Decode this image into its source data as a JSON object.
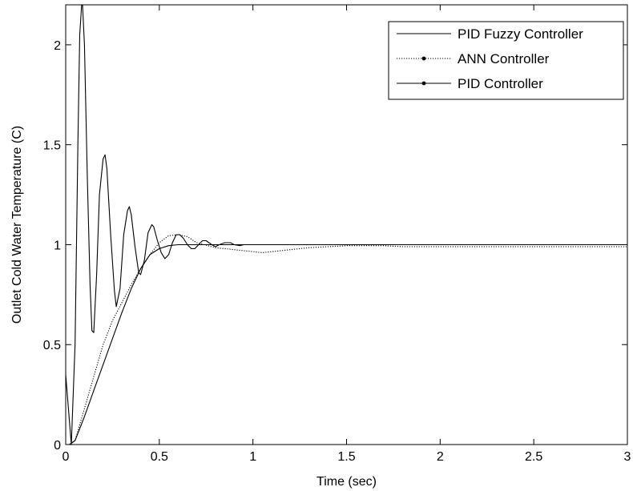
{
  "chart_data": {
    "type": "line",
    "title": "",
    "xlabel": "Time (sec)",
    "ylabel": "Outlet Cold Water Temperature (C)",
    "xlim": [
      0,
      3
    ],
    "ylim": [
      0,
      2.2
    ],
    "xticks": [
      0,
      0.5,
      1,
      1.5,
      2,
      2.5,
      3
    ],
    "xtick_labels": [
      "0",
      "0.5",
      "1",
      "1.5",
      "2",
      "2.5",
      "3"
    ],
    "yticks": [
      0,
      0.5,
      1,
      1.5,
      2
    ],
    "ytick_labels": [
      "0",
      "0.5",
      "1",
      "1.5",
      "2"
    ],
    "grid": false,
    "legend_position": "top-right",
    "series": [
      {
        "name": "PID Fuzzy Controller",
        "style": "solid",
        "marker": "none",
        "x": [
          0,
          0.02,
          0.05,
          0.1,
          0.15,
          0.2,
          0.25,
          0.3,
          0.35,
          0.4,
          0.45,
          0.5,
          0.55,
          0.6,
          0.7,
          0.8,
          0.9,
          1.0,
          1.5,
          2.0,
          3.0
        ],
        "y": [
          0,
          0,
          0.02,
          0.14,
          0.27,
          0.4,
          0.53,
          0.66,
          0.78,
          0.88,
          0.95,
          0.98,
          0.995,
          1.0,
          1.0,
          1.0,
          1.0,
          1.0,
          1.0,
          1.0,
          1.0
        ]
      },
      {
        "name": "ANN Controller",
        "style": "dotted",
        "marker": "dot",
        "x": [
          0,
          0.02,
          0.05,
          0.1,
          0.15,
          0.2,
          0.25,
          0.3,
          0.35,
          0.4,
          0.45,
          0.5,
          0.55,
          0.6,
          0.65,
          0.7,
          0.8,
          0.9,
          1.0,
          1.05,
          1.1,
          1.2,
          1.3,
          1.4,
          1.5,
          1.6,
          1.7,
          1.8,
          2.0,
          3.0
        ],
        "y": [
          0,
          0,
          0.02,
          0.18,
          0.34,
          0.5,
          0.62,
          0.71,
          0.8,
          0.88,
          0.95,
          1.01,
          1.045,
          1.05,
          1.04,
          1.01,
          0.985,
          0.975,
          0.965,
          0.96,
          0.965,
          0.975,
          0.985,
          0.99,
          0.995,
          0.995,
          0.995,
          0.99,
          0.99,
          0.99
        ]
      },
      {
        "name": "PID Controller",
        "style": "solid",
        "marker": "dot",
        "x": [
          0,
          0.03,
          0.05,
          0.065,
          0.075,
          0.085,
          0.09,
          0.1,
          0.115,
          0.13,
          0.14,
          0.15,
          0.165,
          0.18,
          0.2,
          0.21,
          0.22,
          0.24,
          0.26,
          0.27,
          0.29,
          0.31,
          0.33,
          0.34,
          0.35,
          0.37,
          0.39,
          0.4,
          0.42,
          0.44,
          0.46,
          0.47,
          0.49,
          0.51,
          0.53,
          0.55,
          0.57,
          0.59,
          0.61,
          0.63,
          0.65,
          0.67,
          0.69,
          0.71,
          0.73,
          0.75,
          0.78,
          0.8,
          0.82,
          0.85,
          0.88,
          0.9,
          0.93,
          0.95,
          1.0,
          1.05,
          1.1,
          1.2,
          1.3,
          1.5,
          2.0,
          3.0
        ],
        "y": [
          0.35,
          0,
          0.5,
          1.5,
          2.05,
          2.2,
          2.2,
          2.0,
          1.35,
          0.8,
          0.57,
          0.56,
          0.85,
          1.25,
          1.43,
          1.45,
          1.38,
          1.05,
          0.77,
          0.69,
          0.78,
          1.05,
          1.17,
          1.19,
          1.15,
          0.99,
          0.86,
          0.85,
          0.92,
          1.06,
          1.1,
          1.09,
          1.02,
          0.96,
          0.93,
          0.95,
          1.01,
          1.05,
          1.05,
          1.03,
          1.0,
          0.98,
          0.98,
          1.0,
          1.02,
          1.02,
          1.0,
          0.99,
          1.0,
          1.01,
          1.01,
          1.0,
          0.995,
          1.0,
          1.0,
          1.0,
          1.0,
          1.0,
          1.0,
          1.0,
          1.0,
          1.0
        ]
      }
    ]
  }
}
